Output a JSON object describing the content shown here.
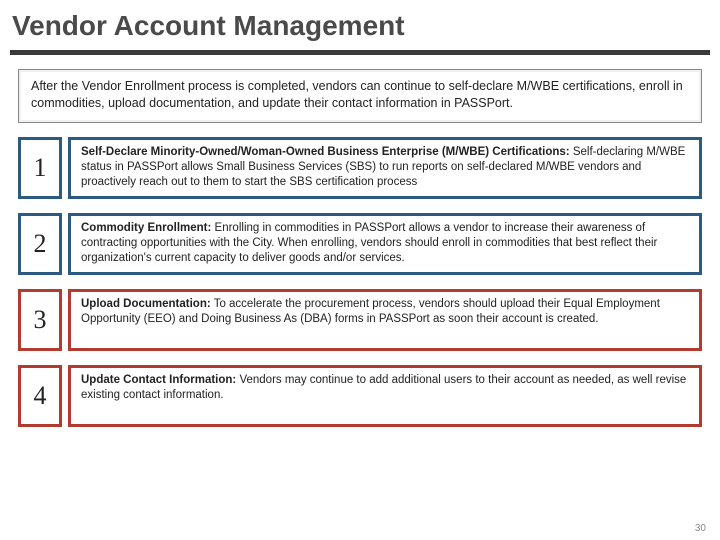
{
  "title": "Vendor Account Management",
  "intro": "After the Vendor Enrollment process is completed, vendors can continue to self-declare M/WBE certifications, enroll in commodities, upload documentation, and update their contact information in PASSPort.",
  "page_number": "30",
  "colors": {
    "title_text": "#4a4a4a",
    "underline": "#3a3a3a",
    "intro_border": "#888888",
    "intro_bg_outer": "#f0f0f0",
    "text": "#222222"
  },
  "items": [
    {
      "num": "1",
      "border_color": "#2b5a82",
      "heading": "Self-Declare Minority-Owned/Woman-Owned Business Enterprise (M/WBE) Certifications:",
      "body": " Self-declaring M/WBE status in PASSPort allows Small Business Services (SBS) to run reports on self-declared M/WBE vendors and proactively reach out to them to start the SBS certification process"
    },
    {
      "num": "2",
      "border_color": "#2b5a82",
      "heading": "Commodity Enrollment:",
      "body": " Enrolling in commodities in PASSPort allows a vendor to increase their awareness of contracting opportunities with the City. When enrolling, vendors should enroll in commodities that best reflect their organization's current capacity to deliver goods and/or services."
    },
    {
      "num": "3",
      "border_color": "#b23a2f",
      "heading": "Upload Documentation:",
      "body": " To accelerate the procurement process, vendors should upload their Equal Employment Opportunity (EEO) and Doing Business As (DBA) forms in PASSPort as soon their account is created."
    },
    {
      "num": "4",
      "border_color": "#b23a2f",
      "heading": "Update Contact Information:",
      "body": " Vendors may continue to add additional users to their account as needed, as well revise existing contact information."
    }
  ]
}
